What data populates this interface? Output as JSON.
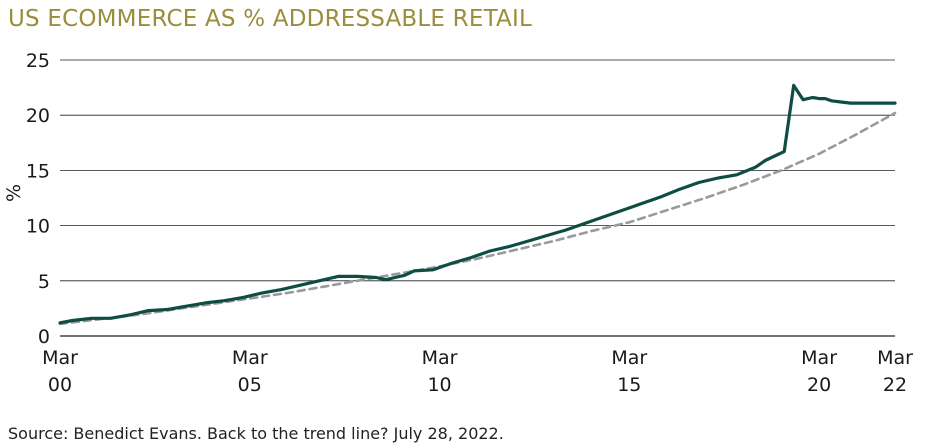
{
  "header": {
    "title": "US ECOMMERCE AS % ADDRESSABLE RETAIL"
  },
  "footer": {
    "source": "Source: Benedict Evans. Back to the trend line? July 28, 2022."
  },
  "colors": {
    "title": "#9a8d3c",
    "series": "#0f4d43",
    "trend": "#9a9a9a",
    "grid": "#222222"
  },
  "chart_data": {
    "type": "line",
    "title": "US ECOMMERCE AS % ADDRESSABLE RETAIL",
    "xlabel": "",
    "ylabel": "%",
    "xlim": [
      2000.17,
      2022.17
    ],
    "ylim": [
      0,
      25
    ],
    "grid": "horizontal",
    "y_ticks": [
      {
        "value": 0,
        "label": "0"
      },
      {
        "value": 5,
        "label": "5"
      },
      {
        "value": 10,
        "label": "10"
      },
      {
        "value": 15,
        "label": "15"
      },
      {
        "value": 20,
        "label": "20"
      },
      {
        "value": 25,
        "label": "25"
      }
    ],
    "x_ticks": [
      {
        "value": 2000.17,
        "line1": "Mar",
        "line2": "00"
      },
      {
        "value": 2005.17,
        "line1": "Mar",
        "line2": "05"
      },
      {
        "value": 2010.17,
        "line1": "Mar",
        "line2": "10"
      },
      {
        "value": 2015.17,
        "line1": "Mar",
        "line2": "15"
      },
      {
        "value": 2020.17,
        "line1": "Mar",
        "line2": "20"
      },
      {
        "value": 2022.17,
        "line1": "Mar",
        "line2": "22"
      }
    ],
    "series": [
      {
        "style": "solid",
        "x": [
          2000.17,
          2000.5,
          2001.0,
          2001.5,
          2002.0,
          2002.5,
          2003.0,
          2003.5,
          2004.0,
          2004.5,
          2005.0,
          2005.5,
          2006.0,
          2006.5,
          2007.0,
          2007.5,
          2008.0,
          2008.5,
          2008.75,
          2009.0,
          2009.25,
          2009.5,
          2010.0,
          2010.5,
          2011.0,
          2011.5,
          2012.0,
          2012.5,
          2013.0,
          2013.5,
          2014.0,
          2014.5,
          2015.0,
          2015.5,
          2016.0,
          2016.5,
          2017.0,
          2017.5,
          2018.0,
          2018.5,
          2018.75,
          2019.0,
          2019.25,
          2019.5,
          2019.75,
          2020.0,
          2020.17,
          2020.33,
          2020.5,
          2020.75,
          2021.0,
          2021.5,
          2022.0,
          2022.17
        ],
        "values": [
          1.2,
          1.4,
          1.6,
          1.6,
          1.9,
          2.3,
          2.4,
          2.7,
          3.0,
          3.2,
          3.5,
          3.9,
          4.2,
          4.6,
          5.0,
          5.4,
          5.4,
          5.3,
          5.1,
          5.3,
          5.5,
          5.9,
          6.0,
          6.6,
          7.1,
          7.7,
          8.1,
          8.6,
          9.1,
          9.6,
          10.2,
          10.8,
          11.4,
          12.0,
          12.6,
          13.3,
          13.9,
          14.3,
          14.6,
          15.3,
          15.9,
          16.3,
          16.7,
          22.7,
          21.4,
          21.6,
          21.5,
          21.5,
          21.3,
          21.2,
          21.1,
          21.1,
          21.1,
          21.1
        ]
      },
      {
        "style": "dashed",
        "x": [
          2000.17,
          2001.17,
          2002.17,
          2003.17,
          2004.17,
          2005.17,
          2006.17,
          2007.17,
          2008.17,
          2009.17,
          2010.17,
          2011.17,
          2012.17,
          2013.17,
          2014.17,
          2015.17,
          2016.17,
          2017.17,
          2018.17,
          2019.17,
          2020.17,
          2021.17,
          2022.17
        ],
        "values": [
          1.1,
          1.5,
          1.9,
          2.4,
          2.9,
          3.4,
          3.9,
          4.5,
          5.1,
          5.7,
          6.3,
          7.0,
          7.8,
          8.6,
          9.5,
          10.3,
          11.4,
          12.5,
          13.7,
          15.0,
          16.5,
          18.3,
          20.2
        ]
      }
    ]
  }
}
